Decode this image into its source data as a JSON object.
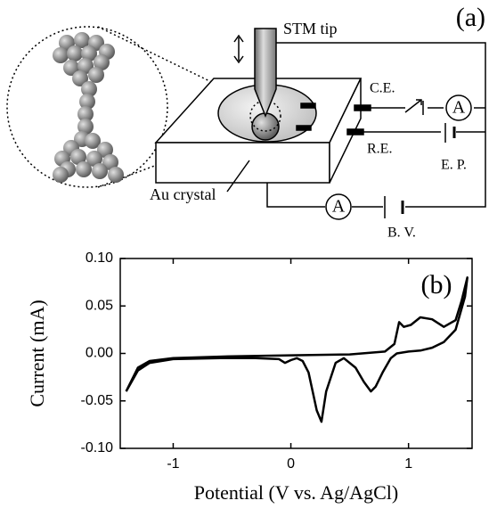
{
  "diagram": {
    "panel_label": "(a)",
    "tip_label": "STM tip",
    "counter_electrode": "C.E.",
    "reference_electrode": "R.E.",
    "potentiostat": "E. P.",
    "crystal_label": "Au crystal",
    "bias_voltage": "B. V.",
    "ammeter_1": "A",
    "ammeter_2": "A"
  },
  "chart_data": {
    "type": "line",
    "panel_label": "(b)",
    "x_label": "Potential (V vs. Ag/AgCl)",
    "y_label": "Current (mA)",
    "color": "#000000",
    "x": [
      -1.4,
      -1.3,
      -1.2,
      -1.0,
      -0.5,
      0,
      0.5,
      0.8,
      0.88,
      0.92,
      0.96,
      1.02,
      1.1,
      1.2,
      1.3,
      1.4,
      1.45,
      1.5,
      1.48,
      1.4,
      1.3,
      1.2,
      1.1,
      1.0,
      0.9,
      0.85,
      0.78,
      0.72,
      0.68,
      0.62,
      0.55,
      0.45,
      0.38,
      0.3,
      0.26,
      0.22,
      0.15,
      0.1,
      0.05,
      0,
      -0.05,
      -0.1,
      -0.3,
      -0.6,
      -1.0,
      -1.2,
      -1.3,
      -1.4
    ],
    "values": [
      -0.04,
      -0.015,
      -0.008,
      -0.005,
      -0.003,
      -0.002,
      -0.001,
      0.002,
      0.01,
      0.033,
      0.028,
      0.03,
      0.038,
      0.036,
      0.028,
      0.035,
      0.055,
      0.08,
      0.06,
      0.025,
      0.012,
      0.006,
      0.003,
      0.002,
      0.0,
      -0.005,
      -0.02,
      -0.035,
      -0.04,
      -0.03,
      -0.015,
      -0.005,
      -0.01,
      -0.04,
      -0.072,
      -0.06,
      -0.02,
      -0.008,
      -0.005,
      -0.007,
      -0.01,
      -0.006,
      -0.005,
      -0.005,
      -0.006,
      -0.01,
      -0.018,
      -0.04
    ],
    "xlim": [
      -1.45,
      1.54
    ],
    "xticks": [
      -1,
      0,
      1
    ],
    "ylim": [
      -0.1,
      0.1
    ],
    "yticks": [
      {
        "value": -0.1,
        "label": "-0.10"
      },
      {
        "value": -0.05,
        "label": "-0.05"
      },
      {
        "value": 0,
        "label": "0.00"
      },
      {
        "value": 0.05,
        "label": "0.05"
      },
      {
        "value": 0.1,
        "label": "0.10"
      }
    ]
  }
}
